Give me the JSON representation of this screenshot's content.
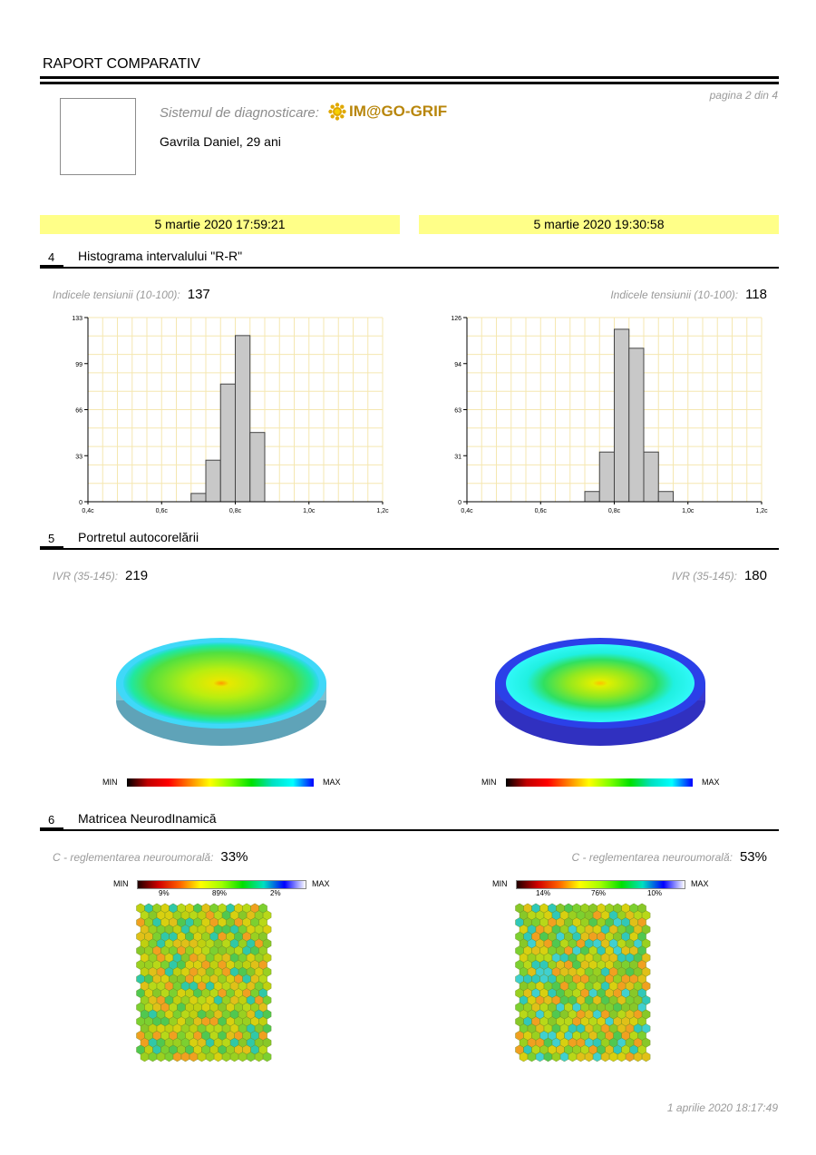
{
  "report": {
    "title": "RAPORT COMPARATIV",
    "page": "pagina 2 din 4",
    "system_label": "Sistemul de diagnosticare:",
    "system_name": "IM@GO-GRIF",
    "patient": "Gavrila Daniel, 29 ani",
    "footer_timestamp": "1 aprilie 2020 18:17:49"
  },
  "sessions": [
    {
      "date": "5 martie 2020 17:59:21"
    },
    {
      "date": "5 martie 2020 19:30:58"
    }
  ],
  "sections": [
    {
      "num": "4",
      "title": "Histograma intervalului \"R-R\""
    },
    {
      "num": "5",
      "title": "Portretul autocorelării"
    },
    {
      "num": "6",
      "title": "Matricea NeurodInamică"
    }
  ],
  "histogram": {
    "metric_label": "Indicele tensiunii (10-100):",
    "left_value": "137",
    "right_value": "118"
  },
  "autocorrelation": {
    "metric_label": "IVR (35-145):",
    "left_value": "219",
    "right_value": "180",
    "scale_min": "MIN",
    "scale_max": "MAX"
  },
  "matrix": {
    "metric_label": "C - reglementarea neuroumorală:",
    "left_value": "33%",
    "right_value": "53%",
    "scale_min": "MIN",
    "scale_max": "MAX",
    "left_percents": [
      "9%",
      "89%",
      "2%"
    ],
    "right_percents": [
      "14%",
      "76%",
      "10%"
    ]
  },
  "colors": {
    "date_bg": "#ffff88",
    "grid": "#f5e7b0",
    "bar_fill": "#c8c8c8",
    "logo": "#b8860b"
  },
  "chart_data": [
    {
      "type": "bar",
      "x_ticks": [
        "0,4c",
        "0,6c",
        "0,8c",
        "1,0c",
        "1,2c"
      ],
      "y_ticks": [
        "0",
        "33",
        "66",
        "99",
        "133"
      ],
      "xlim": [
        0.4,
        1.2
      ],
      "ylim": [
        0,
        133
      ],
      "bin_width": 0.04,
      "bins": [
        0.68,
        0.72,
        0.76,
        0.8,
        0.84
      ],
      "values": [
        6,
        30,
        85,
        120,
        50
      ],
      "grid": true
    },
    {
      "type": "bar",
      "x_ticks": [
        "0,4c",
        "0,6c",
        "0,8c",
        "1,0c",
        "1,2c"
      ],
      "y_ticks": [
        "0",
        "31",
        "63",
        "94",
        "126"
      ],
      "xlim": [
        0.4,
        1.2
      ],
      "ylim": [
        0,
        126
      ],
      "bin_width": 0.04,
      "bins": [
        0.72,
        0.76,
        0.8,
        0.84,
        0.88,
        0.92
      ],
      "values": [
        7,
        34,
        118,
        105,
        34,
        7
      ],
      "grid": true
    }
  ]
}
